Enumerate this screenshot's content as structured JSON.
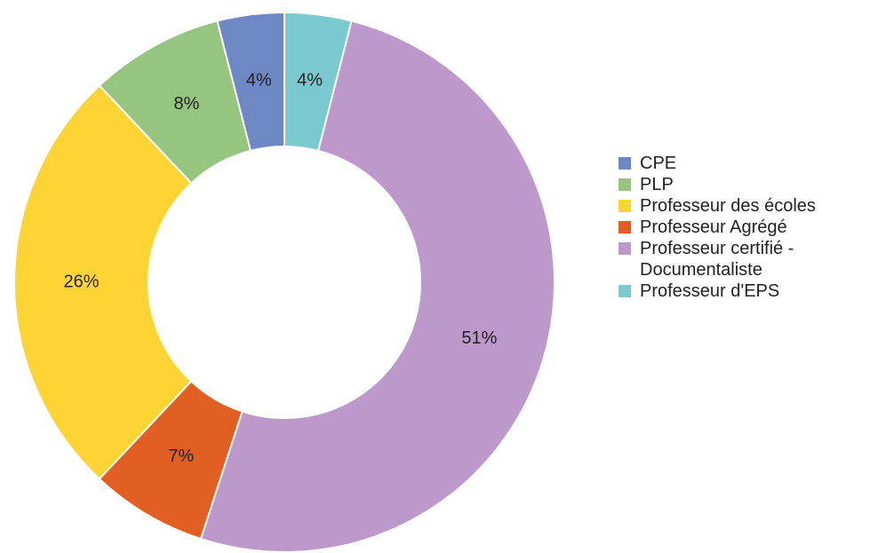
{
  "chart_data": {
    "type": "donut",
    "categories": [
      "CPE",
      "PLP",
      "Professeur des écoles",
      "Professeur Agrégé",
      "Professeur certifié - Documentaliste",
      "Professeur d'EPS"
    ],
    "values": [
      4,
      8,
      26,
      7,
      51,
      4
    ],
    "value_labels": [
      "4%",
      "8%",
      "26%",
      "7%",
      "51%",
      "4%"
    ],
    "colors": [
      "#6d88c4",
      "#95c57f",
      "#fed435",
      "#e15f22",
      "#bc98cb",
      "#79c9cf"
    ],
    "legend": "right"
  }
}
